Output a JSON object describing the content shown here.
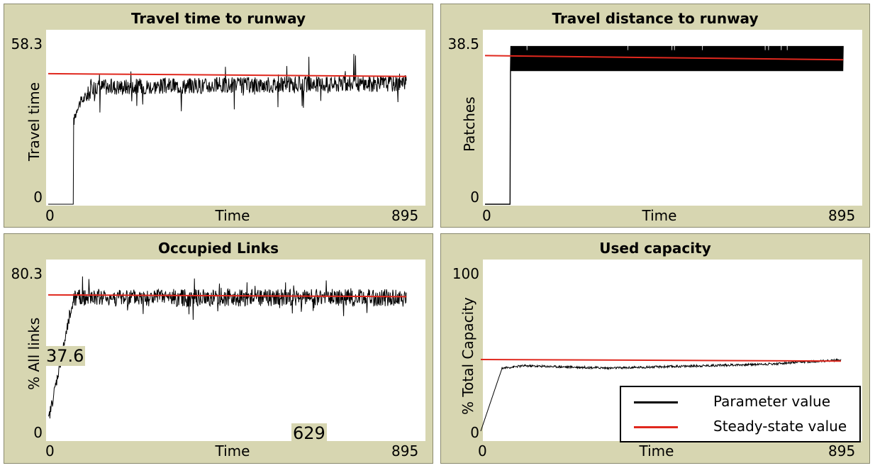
{
  "colors": {
    "panel_bg": "#d7d6b1",
    "series": "#000000",
    "steady": "#e0281e"
  },
  "legend": {
    "items": [
      {
        "label": "Parameter value",
        "color": "#000000"
      },
      {
        "label": "Steady-state value",
        "color": "#e0281e"
      }
    ]
  },
  "chart_data": [
    {
      "type": "line",
      "title": "Travel time to runway",
      "xlabel": "Time",
      "ylabel": "Travel time",
      "xlim": [
        0,
        895
      ],
      "ylim": [
        0,
        58.3
      ],
      "x_ticks": [
        "0",
        "895"
      ],
      "y_ticks": [
        "0",
        "58.3"
      ],
      "series": [
        {
          "name": "Parameter value",
          "shape": "travel_time",
          "x": [
            0,
            60,
            61,
            70,
            80,
            100,
            130,
            180,
            250,
            350,
            450,
            550,
            650,
            750,
            845
          ],
          "values": [
            0,
            0,
            30,
            36,
            38,
            41,
            42,
            43,
            43,
            43,
            43,
            43,
            44,
            44,
            45
          ]
        },
        {
          "name": "Steady-state value",
          "x": [
            0,
            845
          ],
          "values": [
            47.5,
            46.5
          ]
        }
      ]
    },
    {
      "type": "line",
      "title": "Travel distance to runway",
      "xlabel": "Time",
      "ylabel": "Patches",
      "xlim": [
        0,
        895
      ],
      "ylim": [
        0,
        38.5
      ],
      "x_ticks": [
        "0",
        "895"
      ],
      "y_ticks": [
        "0",
        "38.5"
      ],
      "series": [
        {
          "name": "Parameter value",
          "shape": "travel_distance",
          "x": [
            0,
            60,
            61,
            845
          ],
          "band": [
            32,
            38
          ],
          "values": [
            0,
            0,
            35,
            35
          ]
        },
        {
          "name": "Steady-state value",
          "x": [
            0,
            845
          ],
          "values": [
            35.7,
            34.7
          ]
        }
      ]
    },
    {
      "type": "line",
      "title": "Occupied Links",
      "xlabel": "Time",
      "ylabel": "% All links",
      "xlim": [
        0,
        895
      ],
      "ylim": [
        0,
        80.3
      ],
      "x_ticks": [
        "0",
        "895"
      ],
      "y_ticks": [
        "0",
        "80.3"
      ],
      "annotations": [
        "37.6",
        "629"
      ],
      "series": [
        {
          "name": "Parameter value",
          "shape": "occupied_links",
          "x": [
            0,
            5,
            20,
            40,
            60,
            845
          ],
          "values": [
            5,
            15,
            38,
            55,
            68,
            68
          ]
        },
        {
          "name": "Steady-state value",
          "x": [
            0,
            845
          ],
          "values": [
            69.5,
            68.6
          ]
        }
      ]
    },
    {
      "type": "line",
      "title": "Used capacity",
      "xlabel": "Time",
      "ylabel": "% Total Capacity",
      "xlim": [
        0,
        895
      ],
      "ylim": [
        0,
        100
      ],
      "x_ticks": [
        "0",
        "895"
      ],
      "y_ticks": [
        "0",
        "100"
      ],
      "series": [
        {
          "name": "Parameter value",
          "shape": "used_capacity",
          "x": [
            0,
            15,
            30,
            50,
            70,
            100,
            200,
            300,
            400,
            500,
            600,
            700,
            760,
            800,
            845
          ],
          "values": [
            0,
            15,
            32,
            40,
            41,
            41.5,
            41,
            40,
            40.5,
            41,
            42,
            43,
            44,
            45,
            45
          ]
        },
        {
          "name": "Steady-state value",
          "x": [
            0,
            845
          ],
          "values": [
            45.5,
            44.5
          ]
        }
      ]
    }
  ]
}
